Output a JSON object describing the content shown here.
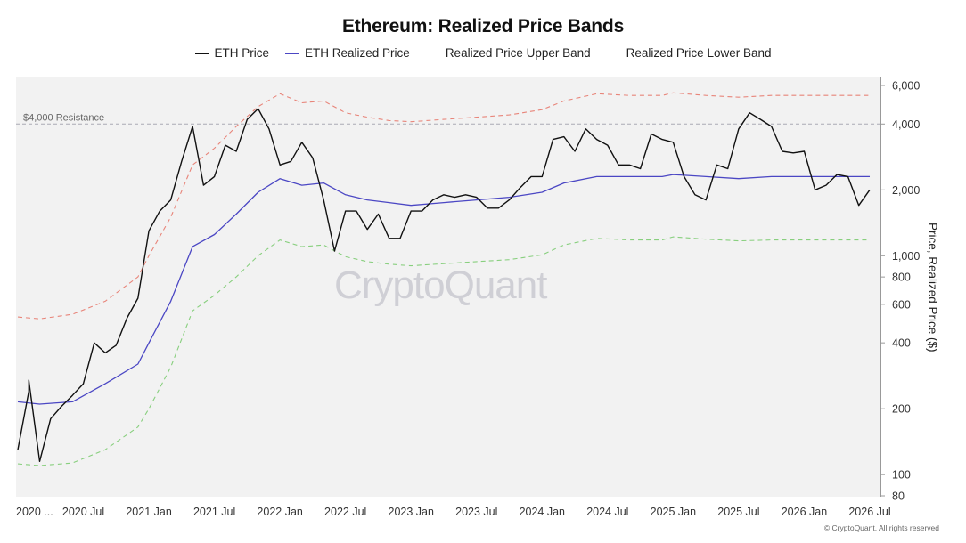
{
  "chart_data": {
    "type": "line",
    "title": "Ethereum: Realized Price Bands",
    "ylabel": "Price, Realized Price ($)",
    "yscale": "log",
    "ylim": [
      80,
      7000
    ],
    "x_range": [
      "2020-01",
      "2026-07"
    ],
    "grid": "off",
    "legend_position": "top-center",
    "x_tick_labels": [
      "2020 ...",
      "2020 Jul",
      "2021 Jan",
      "2021 Jul",
      "2022 Jan",
      "2022 Jul",
      "2023 Jan",
      "2023 Jul",
      "2024 Jan",
      "2024 Jul",
      "2025 Jan",
      "2025 Jul",
      "2026 Jan",
      "2026 Jul"
    ],
    "y_tick_labels": [
      "6,000",
      "4,000",
      "2,000",
      "1,000",
      "800",
      "600",
      "400",
      "200",
      "100",
      "80"
    ],
    "y_tick_values": [
      6000,
      4000,
      2000,
      1000,
      800,
      600,
      400,
      200,
      100,
      80
    ],
    "annotations": [
      {
        "text": "$4,000 Resistance",
        "y": 4000
      }
    ],
    "series": [
      {
        "name": "ETH Price",
        "color": "#111111",
        "style": "solid",
        "points": [
          [
            "2020-01",
            130
          ],
          [
            "2020-02",
            240
          ],
          [
            "2020-02",
            270
          ],
          [
            "2020-03",
            115
          ],
          [
            "2020-04",
            180
          ],
          [
            "2020-05",
            205
          ],
          [
            "2020-06",
            230
          ],
          [
            "2020-07",
            260
          ],
          [
            "2020-08",
            400
          ],
          [
            "2020-09",
            360
          ],
          [
            "2020-10",
            390
          ],
          [
            "2020-11",
            520
          ],
          [
            "2020-12",
            640
          ],
          [
            "2021-01",
            1300
          ],
          [
            "2021-02",
            1600
          ],
          [
            "2021-03",
            1800
          ],
          [
            "2021-04",
            2700
          ],
          [
            "2021-05",
            3900
          ],
          [
            "2021-06",
            2100
          ],
          [
            "2021-07",
            2300
          ],
          [
            "2021-08",
            3200
          ],
          [
            "2021-09",
            3000
          ],
          [
            "2021-10",
            4200
          ],
          [
            "2021-11",
            4700
          ],
          [
            "2021-12",
            3800
          ],
          [
            "2022-01",
            2600
          ],
          [
            "2022-02",
            2700
          ],
          [
            "2022-03",
            3300
          ],
          [
            "2022-04",
            2800
          ],
          [
            "2022-05",
            1800
          ],
          [
            "2022-06",
            1050
          ],
          [
            "2022-07",
            1600
          ],
          [
            "2022-08",
            1600
          ],
          [
            "2022-09",
            1320
          ],
          [
            "2022-10",
            1550
          ],
          [
            "2022-11",
            1200
          ],
          [
            "2022-12",
            1200
          ],
          [
            "2023-01",
            1600
          ],
          [
            "2023-02",
            1600
          ],
          [
            "2023-03",
            1800
          ],
          [
            "2023-04",
            1900
          ],
          [
            "2023-05",
            1850
          ],
          [
            "2023-06",
            1900
          ],
          [
            "2023-07",
            1850
          ],
          [
            "2023-08",
            1650
          ],
          [
            "2023-09",
            1650
          ],
          [
            "2023-10",
            1800
          ],
          [
            "2023-11",
            2050
          ],
          [
            "2023-12",
            2300
          ],
          [
            "2024-01",
            2300
          ],
          [
            "2024-02",
            3400
          ],
          [
            "2024-03",
            3500
          ],
          [
            "2024-04",
            3000
          ],
          [
            "2024-05",
            3800
          ],
          [
            "2024-06",
            3400
          ],
          [
            "2024-07",
            3200
          ],
          [
            "2024-08",
            2600
          ],
          [
            "2024-09",
            2600
          ],
          [
            "2024-10",
            2500
          ],
          [
            "2024-11",
            3600
          ],
          [
            "2024-12",
            3400
          ],
          [
            "2025-01",
            3300
          ],
          [
            "2025-02",
            2300
          ],
          [
            "2025-03",
            1900
          ],
          [
            "2025-04",
            1800
          ],
          [
            "2025-05",
            2600
          ],
          [
            "2025-06",
            2500
          ],
          [
            "2025-07",
            3800
          ],
          [
            "2025-08",
            4500
          ],
          [
            "2025-09",
            4200
          ],
          [
            "2025-10",
            3900
          ],
          [
            "2025-11",
            3000
          ],
          [
            "2025-12",
            2950
          ],
          [
            "2026-01",
            3000
          ],
          [
            "2026-02",
            2000
          ],
          [
            "2026-03",
            2100
          ],
          [
            "2026-04",
            2350
          ],
          [
            "2026-05",
            2300
          ],
          [
            "2026-06",
            1700
          ],
          [
            "2026-07",
            2000
          ]
        ]
      },
      {
        "name": "ETH Realized Price",
        "color": "#4b47c4",
        "style": "solid",
        "points": [
          [
            "2020-01",
            215
          ],
          [
            "2020-03",
            210
          ],
          [
            "2020-06",
            215
          ],
          [
            "2020-09",
            260
          ],
          [
            "2020-12",
            320
          ],
          [
            "2021-01",
            400
          ],
          [
            "2021-03",
            620
          ],
          [
            "2021-05",
            1100
          ],
          [
            "2021-07",
            1250
          ],
          [
            "2021-09",
            1550
          ],
          [
            "2021-11",
            1950
          ],
          [
            "2022-01",
            2250
          ],
          [
            "2022-03",
            2100
          ],
          [
            "2022-05",
            2150
          ],
          [
            "2022-07",
            1900
          ],
          [
            "2022-09",
            1800
          ],
          [
            "2022-11",
            1750
          ],
          [
            "2023-01",
            1700
          ],
          [
            "2023-04",
            1750
          ],
          [
            "2023-07",
            1800
          ],
          [
            "2023-10",
            1850
          ],
          [
            "2024-01",
            1950
          ],
          [
            "2024-03",
            2150
          ],
          [
            "2024-06",
            2300
          ],
          [
            "2024-09",
            2300
          ],
          [
            "2024-12",
            2300
          ],
          [
            "2025-01",
            2350
          ],
          [
            "2025-04",
            2300
          ],
          [
            "2025-07",
            2250
          ],
          [
            "2025-10",
            2300
          ],
          [
            "2026-01",
            2300
          ],
          [
            "2026-04",
            2300
          ],
          [
            "2026-07",
            2300
          ]
        ]
      },
      {
        "name": "Realized Price Upper Band",
        "color": "#e8857a",
        "style": "dashed",
        "points": [
          [
            "2020-01",
            525
          ],
          [
            "2020-03",
            515
          ],
          [
            "2020-06",
            540
          ],
          [
            "2020-09",
            620
          ],
          [
            "2020-12",
            800
          ],
          [
            "2021-01",
            1000
          ],
          [
            "2021-03",
            1500
          ],
          [
            "2021-05",
            2600
          ],
          [
            "2021-07",
            3100
          ],
          [
            "2021-09",
            3900
          ],
          [
            "2021-11",
            4800
          ],
          [
            "2022-01",
            5500
          ],
          [
            "2022-03",
            5000
          ],
          [
            "2022-05",
            5100
          ],
          [
            "2022-07",
            4500
          ],
          [
            "2022-09",
            4300
          ],
          [
            "2022-11",
            4150
          ],
          [
            "2023-01",
            4100
          ],
          [
            "2023-04",
            4200
          ],
          [
            "2023-07",
            4300
          ],
          [
            "2023-10",
            4400
          ],
          [
            "2024-01",
            4650
          ],
          [
            "2024-03",
            5100
          ],
          [
            "2024-06",
            5500
          ],
          [
            "2024-09",
            5400
          ],
          [
            "2024-12",
            5400
          ],
          [
            "2025-01",
            5550
          ],
          [
            "2025-04",
            5400
          ],
          [
            "2025-07",
            5300
          ],
          [
            "2025-10",
            5400
          ],
          [
            "2026-01",
            5400
          ],
          [
            "2026-04",
            5400
          ],
          [
            "2026-07",
            5400
          ]
        ]
      },
      {
        "name": "Realized Price Lower Band",
        "color": "#88cf7e",
        "style": "dashed",
        "points": [
          [
            "2020-01",
            112
          ],
          [
            "2020-03",
            110
          ],
          [
            "2020-06",
            113
          ],
          [
            "2020-09",
            130
          ],
          [
            "2020-12",
            165
          ],
          [
            "2021-01",
            200
          ],
          [
            "2021-03",
            310
          ],
          [
            "2021-05",
            560
          ],
          [
            "2021-07",
            660
          ],
          [
            "2021-09",
            800
          ],
          [
            "2021-11",
            1000
          ],
          [
            "2022-01",
            1180
          ],
          [
            "2022-03",
            1100
          ],
          [
            "2022-05",
            1120
          ],
          [
            "2022-07",
            990
          ],
          [
            "2022-09",
            940
          ],
          [
            "2022-11",
            915
          ],
          [
            "2023-01",
            900
          ],
          [
            "2023-04",
            920
          ],
          [
            "2023-07",
            940
          ],
          [
            "2023-10",
            960
          ],
          [
            "2024-01",
            1010
          ],
          [
            "2024-03",
            1120
          ],
          [
            "2024-06",
            1200
          ],
          [
            "2024-09",
            1180
          ],
          [
            "2024-12",
            1180
          ],
          [
            "2025-01",
            1220
          ],
          [
            "2025-04",
            1190
          ],
          [
            "2025-07",
            1170
          ],
          [
            "2025-10",
            1180
          ],
          [
            "2026-01",
            1180
          ],
          [
            "2026-04",
            1180
          ],
          [
            "2026-07",
            1180
          ]
        ]
      }
    ]
  },
  "watermark": "CryptoQuant",
  "copyright": "© CryptoQuant. All rights reserved"
}
